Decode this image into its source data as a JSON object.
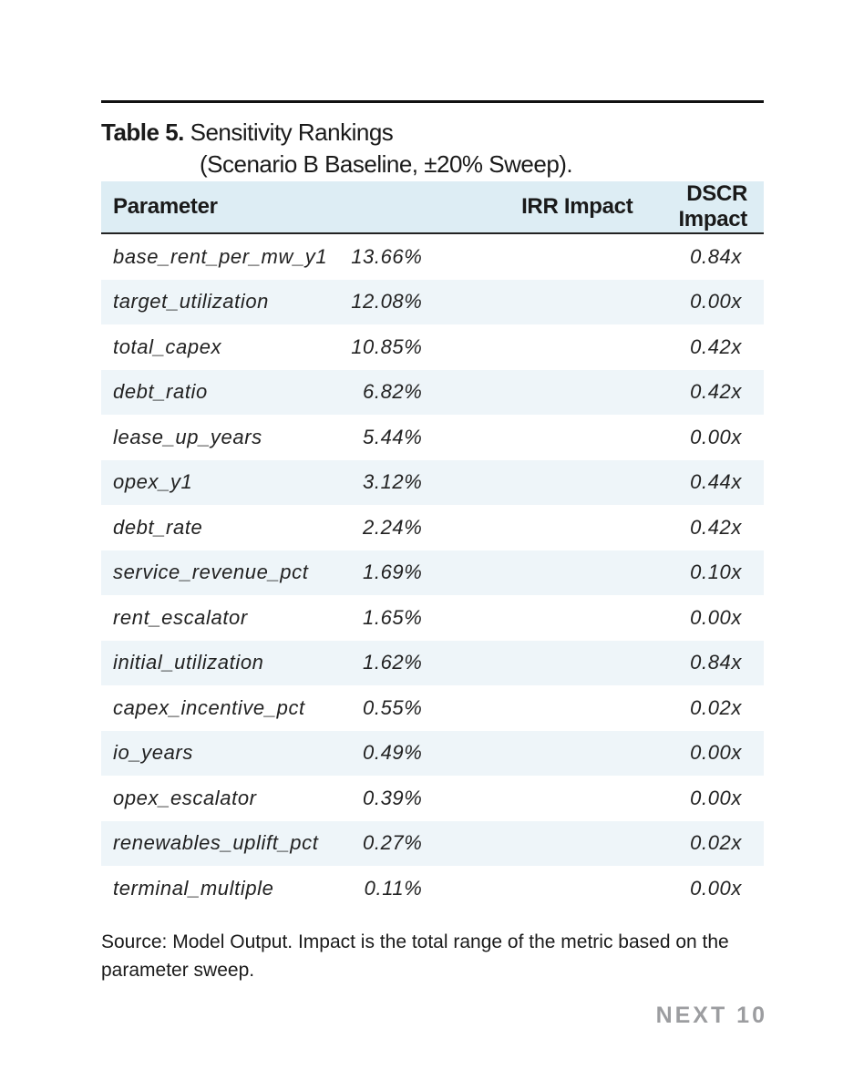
{
  "caption": {
    "label": "Table 5.",
    "line1": "Sensitivity Rankings",
    "line2": "(Scenario B Baseline, ±20% Sweep)."
  },
  "table": {
    "headers": [
      "Parameter",
      "IRR Impact",
      "DSCR Impact"
    ],
    "rows": [
      [
        "base_rent_per_mw_y1",
        "13.66%",
        "0.84x"
      ],
      [
        "target_utilization",
        "12.08%",
        "0.00x"
      ],
      [
        "total_capex",
        "10.85%",
        "0.42x"
      ],
      [
        "debt_ratio",
        "6.82%",
        "0.42x"
      ],
      [
        "lease_up_years",
        "5.44%",
        "0.00x"
      ],
      [
        "opex_y1",
        "3.12%",
        "0.44x"
      ],
      [
        "debt_rate",
        "2.24%",
        "0.42x"
      ],
      [
        "service_revenue_pct",
        "1.69%",
        "0.10x"
      ],
      [
        "rent_escalator",
        "1.65%",
        "0.00x"
      ],
      [
        "initial_utilization",
        "1.62%",
        "0.84x"
      ],
      [
        "capex_incentive_pct",
        "0.55%",
        "0.02x"
      ],
      [
        "io_years",
        "0.49%",
        "0.00x"
      ],
      [
        "opex_escalator",
        "0.39%",
        "0.00x"
      ],
      [
        "renewables_uplift_pct",
        "0.27%",
        "0.02x"
      ],
      [
        "terminal_multiple",
        "0.11%",
        "0.00x"
      ]
    ]
  },
  "source_note": "Source: Model Output. Impact is the total range of the metric based on the parameter sweep.",
  "footer_brand": "NEXT 10",
  "colors": {
    "header_bg": "#ddedf4",
    "stripe_bg": "#eef5f9",
    "brand": "#9c9da0"
  }
}
